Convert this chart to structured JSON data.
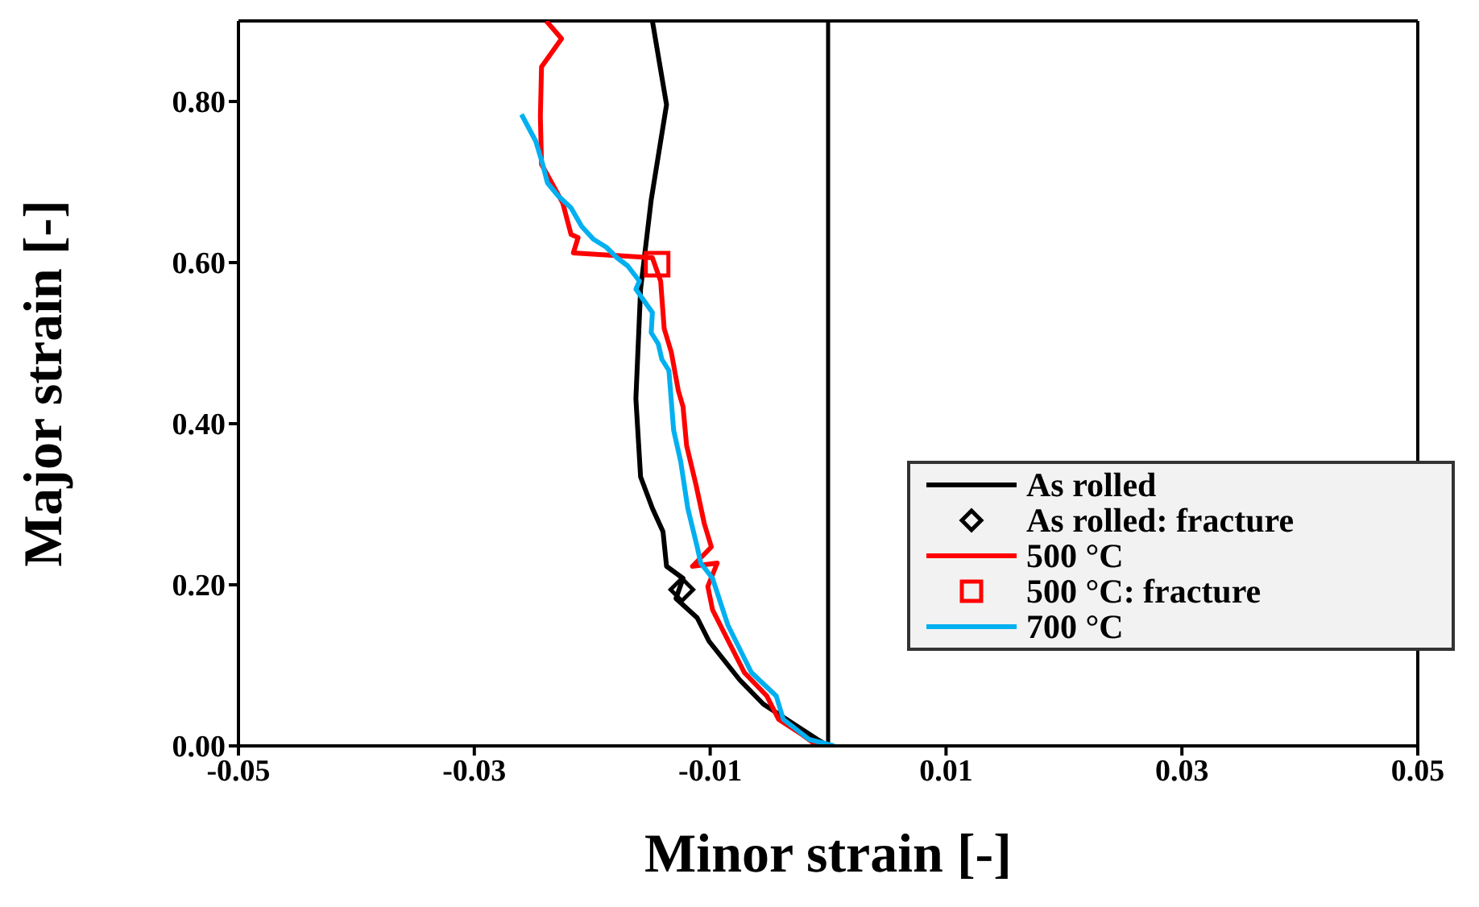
{
  "chart_data": {
    "type": "line",
    "xlabel": "Minor strain [-]",
    "ylabel": "Major strain [-]",
    "xlim": [
      -0.05,
      0.05
    ],
    "xticks": [
      -0.05,
      -0.03,
      -0.01,
      0.01,
      0.03,
      0.05
    ],
    "ylim": [
      0,
      0.9
    ],
    "yticks": [
      {
        "value": 0,
        "label": "0.00"
      },
      {
        "value": 0.2,
        "label": "0.20"
      },
      {
        "value": 0.4,
        "label": "0.40"
      },
      {
        "value": 0.6,
        "label": "0.60"
      },
      {
        "value": 0.8,
        "label": "0.80"
      }
    ],
    "grid": false,
    "legend": "right",
    "line_style": "solid",
    "ref_lines": [
      {
        "axis": "x",
        "value": 0,
        "color": "#000000"
      }
    ],
    "series": [
      {
        "name": "As rolled",
        "color": "#000000",
        "marker": "none",
        "x": [
          -0.0149,
          -0.0137,
          -0.015,
          -0.0159,
          -0.0163,
          -0.0159,
          -0.0149,
          -0.014,
          -0.0137,
          -0.0123,
          -0.0129,
          -0.0111,
          -0.0101,
          -0.0075,
          -0.0055,
          -0.0029,
          -0.0009,
          0
        ],
        "values": [
          0.9,
          0.796,
          0.678,
          0.567,
          0.431,
          0.334,
          0.295,
          0.266,
          0.223,
          0.208,
          0.183,
          0.159,
          0.13,
          0.082,
          0.052,
          0.027,
          0.008,
          0
        ]
      },
      {
        "name": "As rolled: fracture",
        "type": "scatter",
        "color": "#000000",
        "marker": "diamond",
        "x": [
          -0.0124
        ],
        "values": [
          0.194
        ]
      },
      {
        "name": "500 °C",
        "color": "#ff0000",
        "marker": "none",
        "x": [
          -0.0239,
          -0.0226,
          -0.0243,
          -0.0244,
          -0.0243,
          -0.0225,
          -0.0218,
          -0.0212,
          -0.0216,
          -0.0149,
          -0.0142,
          -0.0139,
          -0.0133,
          -0.0127,
          -0.0123,
          -0.012,
          -0.0112,
          -0.0105,
          -0.0099,
          -0.0115,
          -0.0094,
          -0.0102,
          -0.0098,
          -0.0088,
          -0.0071,
          -0.0052,
          -0.0042,
          -0.0022,
          -0.0009
        ],
        "values": [
          0.9,
          0.878,
          0.843,
          0.781,
          0.722,
          0.674,
          0.635,
          0.631,
          0.612,
          0.606,
          0.577,
          0.518,
          0.489,
          0.441,
          0.421,
          0.373,
          0.324,
          0.276,
          0.247,
          0.223,
          0.227,
          0.198,
          0.169,
          0.14,
          0.091,
          0.062,
          0.033,
          0.014,
          0
        ]
      },
      {
        "name": "500 °C: fracture",
        "type": "scatter",
        "color": "#ff0000",
        "marker": "square",
        "x": [
          -0.0145
        ],
        "values": [
          0.598
        ]
      },
      {
        "name": "700 °C",
        "color": "#00b0f0",
        "marker": "none",
        "x": [
          -0.026,
          -0.0248,
          -0.0242,
          -0.0238,
          -0.0229,
          -0.0218,
          -0.0209,
          -0.0199,
          -0.0188,
          -0.0179,
          -0.017,
          -0.016,
          -0.0163,
          -0.0149,
          -0.015,
          -0.0144,
          -0.0141,
          -0.0135,
          -0.0131,
          -0.0125,
          -0.0119,
          -0.0111,
          -0.0108,
          -0.0098,
          -0.0085,
          -0.0065,
          -0.0044,
          -0.0038,
          -0.0016,
          0.0005
        ],
        "values": [
          0.784,
          0.751,
          0.722,
          0.699,
          0.683,
          0.668,
          0.645,
          0.629,
          0.619,
          0.606,
          0.596,
          0.577,
          0.567,
          0.538,
          0.513,
          0.499,
          0.48,
          0.466,
          0.392,
          0.353,
          0.295,
          0.247,
          0.227,
          0.208,
          0.15,
          0.091,
          0.062,
          0.033,
          0.008,
          0
        ]
      }
    ]
  }
}
